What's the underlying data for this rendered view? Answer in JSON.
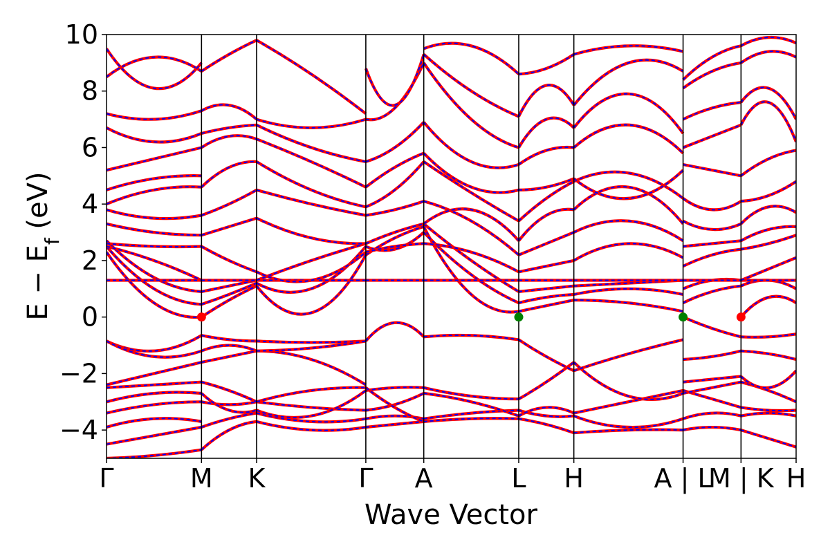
{
  "chart_data": {
    "type": "line",
    "xlabel": "Wave Vector",
    "ylabel_main": "E − E",
    "ylabel_sub": "f",
    "ylabel_unit": " (eV)",
    "ylim": [
      -5,
      10
    ],
    "y_ticks": [
      -4,
      -2,
      0,
      2,
      4,
      6,
      8,
      10
    ],
    "y_tick_labels": [
      "−4",
      "−2",
      "0",
      "2",
      "4",
      "6",
      "8",
      "10"
    ],
    "k_ticks": [
      0,
      1,
      1.58,
      2.73,
      3.34,
      4.34,
      4.92,
      6.07,
      6.68,
      7.26
    ],
    "k_tick_labels": [
      "Γ",
      "M",
      "K",
      "Γ",
      "A",
      "L",
      "H",
      "A | L",
      "M | K",
      "H"
    ],
    "line_style": {
      "solid_color": "#ff0000",
      "dashed_color": "#0000ff"
    },
    "band_edge_markers": [
      {
        "k": 1.0,
        "E": 0.0,
        "color": "#ff0000"
      },
      {
        "k": 4.34,
        "E": 0.0,
        "color": "#008000"
      },
      {
        "k": 6.07,
        "E": 0.0,
        "color": "#008000"
      },
      {
        "k": 6.68,
        "E": 0.0,
        "color": "#ff0000"
      }
    ],
    "segments": [
      {
        "k0": 0,
        "k1": 1,
        "bands": [
          [
            -5.0,
            -4.9,
            -4.7
          ],
          [
            -4.5,
            -4.2,
            -3.9
          ],
          [
            -3.9,
            -3.6,
            -3.7
          ],
          [
            -3.4,
            -3.1,
            -3.0
          ],
          [
            -3.0,
            -2.7,
            -2.7
          ],
          [
            -2.5,
            -2.4,
            -2.3
          ],
          [
            -2.4,
            -2.0,
            -1.6
          ],
          [
            -0.85,
            -1.2,
            -0.65
          ],
          [
            -0.85,
            -1.4,
            -1.2
          ],
          [
            2.3,
            0.5,
            0.0
          ],
          [
            2.5,
            1.0,
            0.45
          ],
          [
            2.7,
            1.4,
            0.9
          ],
          [
            1.3,
            1.3,
            1.3
          ],
          [
            2.5,
            2.0,
            1.3
          ],
          [
            2.6,
            2.5,
            2.5
          ],
          [
            3.3,
            3.0,
            2.9
          ],
          [
            3.8,
            3.5,
            3.6
          ],
          [
            4.0,
            4.5,
            4.6
          ],
          [
            4.5,
            4.9,
            5.0
          ],
          [
            5.2,
            5.6,
            6.0
          ],
          [
            6.7,
            6.2,
            6.5
          ],
          [
            7.2,
            7.0,
            7.3
          ],
          [
            8.5,
            9.2,
            8.7
          ],
          [
            9.5,
            8.1,
            9.0
          ]
        ]
      },
      {
        "k0": 1,
        "k1": 1.58,
        "bands": [
          [
            -4.7,
            -4.0,
            -3.7
          ],
          [
            -3.9,
            -3.6,
            -3.4
          ],
          [
            -3.0,
            -3.1,
            -3.0
          ],
          [
            -2.7,
            -3.3,
            -3.3
          ],
          [
            -2.3,
            -2.6,
            -3.0
          ],
          [
            -1.6,
            -1.4,
            -1.2
          ],
          [
            -0.65,
            -0.8,
            -0.85
          ],
          [
            -1.2,
            -1.0,
            -1.2
          ],
          [
            0.0,
            0.6,
            1.1
          ],
          [
            0.45,
            0.8,
            1.2
          ],
          [
            0.9,
            1.1,
            1.3
          ],
          [
            1.3,
            1.3,
            1.3
          ],
          [
            2.5,
            2.0,
            1.6
          ],
          [
            2.9,
            3.2,
            3.5
          ],
          [
            3.6,
            4.0,
            4.5
          ],
          [
            4.6,
            5.3,
            5.5
          ],
          [
            6.0,
            6.4,
            6.3
          ],
          [
            6.5,
            6.7,
            6.8
          ],
          [
            7.3,
            7.5,
            7.0
          ],
          [
            8.7,
            9.3,
            9.8
          ]
        ]
      },
      {
        "k0": 1.58,
        "k1": 2.73,
        "bands": [
          [
            -3.7,
            -4.0,
            -3.9
          ],
          [
            -3.4,
            -3.7,
            -3.6
          ],
          [
            -3.0,
            -3.2,
            -3.3
          ],
          [
            -3.3,
            -3.5,
            -2.6
          ],
          [
            -3.0,
            -2.6,
            -2.5
          ],
          [
            -1.2,
            -1.5,
            -2.4
          ],
          [
            -0.85,
            -0.9,
            -0.85
          ],
          [
            -1.2,
            -1.1,
            -0.85
          ],
          [
            1.1,
            0.15,
            2.2
          ],
          [
            1.2,
            1.0,
            2.5
          ],
          [
            1.3,
            1.3,
            1.3
          ],
          [
            1.3,
            2.0,
            2.6
          ],
          [
            1.6,
            1.3,
            2.3
          ],
          [
            3.5,
            2.8,
            2.6
          ],
          [
            4.5,
            4.0,
            3.6
          ],
          [
            5.5,
            4.5,
            3.9
          ],
          [
            6.3,
            5.5,
            4.6
          ],
          [
            6.8,
            6.0,
            5.5
          ],
          [
            7.0,
            6.7,
            7.0
          ],
          [
            9.8,
            8.6,
            7.2
          ]
        ]
      },
      {
        "k0": 2.73,
        "k1": 3.34,
        "bands": [
          [
            -3.9,
            -3.8,
            -3.7
          ],
          [
            -3.6,
            -3.5,
            -3.6
          ],
          [
            -3.3,
            -3.1,
            -2.7
          ],
          [
            -2.6,
            -2.5,
            -2.5
          ],
          [
            -2.5,
            -3.2,
            -3.7
          ],
          [
            -0.85,
            -0.2,
            -0.7
          ],
          [
            2.2,
            2.8,
            3.2
          ],
          [
            2.5,
            2.4,
            3.0
          ],
          [
            1.3,
            1.3,
            1.3
          ],
          [
            2.6,
            3.0,
            3.3
          ],
          [
            2.3,
            2.5,
            2.6
          ],
          [
            3.6,
            3.8,
            4.1
          ],
          [
            3.9,
            4.5,
            5.5
          ],
          [
            4.6,
            5.3,
            5.8
          ],
          [
            5.5,
            6.0,
            6.9
          ],
          [
            7.0,
            7.4,
            9.0
          ],
          [
            8.8,
            7.5,
            9.3
          ]
        ]
      },
      {
        "k0": 3.34,
        "k1": 4.34,
        "bands": [
          [
            -3.7,
            -3.6,
            -3.6
          ],
          [
            -3.6,
            -3.4,
            -3.3
          ],
          [
            -2.7,
            -3.0,
            -3.5
          ],
          [
            -2.5,
            -2.8,
            -2.9
          ],
          [
            -0.7,
            -0.65,
            -0.8
          ],
          [
            3.2,
            0.8,
            0.2
          ],
          [
            3.0,
            1.5,
            0.5
          ],
          [
            3.3,
            2.0,
            0.9
          ],
          [
            1.3,
            1.3,
            1.3
          ],
          [
            2.6,
            2.3,
            1.6
          ],
          [
            4.1,
            3.4,
            2.2
          ],
          [
            3.3,
            3.8,
            2.7
          ],
          [
            5.5,
            4.4,
            3.4
          ],
          [
            5.8,
            4.6,
            4.5
          ],
          [
            6.9,
            5.5,
            5.4
          ],
          [
            9.0,
            7.0,
            6.0
          ],
          [
            9.3,
            8.0,
            7.1
          ],
          [
            9.5,
            9.6,
            8.6
          ]
        ]
      },
      {
        "k0": 4.34,
        "k1": 4.92,
        "bands": [
          [
            -3.6,
            -3.8,
            -4.1
          ],
          [
            -3.3,
            -3.5,
            -3.5
          ],
          [
            -3.5,
            -3.2,
            -3.4
          ],
          [
            -2.9,
            -2.3,
            -1.6
          ],
          [
            -0.8,
            -1.4,
            -1.9
          ],
          [
            0.2,
            0.4,
            0.6
          ],
          [
            0.5,
            0.7,
            0.8
          ],
          [
            0.9,
            1.0,
            1.1
          ],
          [
            1.3,
            1.3,
            1.3
          ],
          [
            1.6,
            1.8,
            2.0
          ],
          [
            2.2,
            2.6,
            3.0
          ],
          [
            2.7,
            3.6,
            3.8
          ],
          [
            3.4,
            4.2,
            4.8
          ],
          [
            4.5,
            4.6,
            4.9
          ],
          [
            5.4,
            5.9,
            6.0
          ],
          [
            6.0,
            7.0,
            6.7
          ],
          [
            7.1,
            8.2,
            7.5
          ],
          [
            8.6,
            8.8,
            9.3
          ]
        ]
      },
      {
        "k0": 4.92,
        "k1": 6.07,
        "bands": [
          [
            -4.1,
            -4.0,
            -4.0
          ],
          [
            -3.5,
            -3.9,
            -3.6
          ],
          [
            -3.4,
            -3.0,
            -2.6
          ],
          [
            -1.6,
            -2.8,
            -2.7
          ],
          [
            -1.9,
            -1.3,
            -0.8
          ],
          [
            0.6,
            0.5,
            0.2
          ],
          [
            0.8,
            1.0,
            0.8
          ],
          [
            1.1,
            1.2,
            1.3
          ],
          [
            1.3,
            1.3,
            1.3
          ],
          [
            2.0,
            2.6,
            2.1
          ],
          [
            3.0,
            3.4,
            2.7
          ],
          [
            3.8,
            4.6,
            3.3
          ],
          [
            4.8,
            5.1,
            4.2
          ],
          [
            4.9,
            4.2,
            5.2
          ],
          [
            6.0,
            6.8,
            5.8
          ],
          [
            6.7,
            7.9,
            6.5
          ],
          [
            7.5,
            9.0,
            8.7
          ],
          [
            9.3,
            9.6,
            9.4
          ]
        ]
      },
      {
        "k0": 6.07,
        "k1": 6.68,
        "bands": [
          [
            -4.0,
            -3.9,
            -4.0
          ],
          [
            -3.6,
            -3.4,
            -3.5
          ],
          [
            -2.6,
            -2.9,
            -3.2
          ],
          [
            -2.7,
            -2.5,
            -2.3
          ],
          [
            -1.5,
            -1.4,
            -1.2
          ],
          [
            -2.3,
            -2.2,
            -2.1
          ],
          [
            0.0,
            -0.4,
            -0.7
          ],
          [
            0.5,
            0.9,
            1.1
          ],
          [
            1.0,
            1.3,
            1.3
          ],
          [
            1.3,
            1.3,
            1.3
          ],
          [
            1.8,
            2.2,
            2.4
          ],
          [
            2.5,
            2.6,
            2.7
          ],
          [
            3.4,
            3.1,
            3.3
          ],
          [
            4.2,
            3.8,
            4.1
          ],
          [
            5.4,
            5.2,
            5.0
          ],
          [
            6.0,
            6.4,
            6.8
          ],
          [
            7.0,
            7.4,
            7.6
          ],
          [
            8.1,
            8.7,
            9.0
          ],
          [
            8.4,
            9.2,
            9.6
          ]
        ]
      },
      {
        "k0": 6.68,
        "k1": 7.26,
        "bands": [
          [
            -4.0,
            -4.3,
            -4.6
          ],
          [
            -3.5,
            -3.4,
            -3.5
          ],
          [
            -3.2,
            -3.3,
            -3.3
          ],
          [
            -2.3,
            -2.6,
            -3.0
          ],
          [
            -1.2,
            -1.3,
            -1.5
          ],
          [
            -2.1,
            -2.5,
            -1.9
          ],
          [
            -0.7,
            -0.7,
            -0.6
          ],
          [
            0.0,
            0.7,
            0.5
          ],
          [
            1.1,
            1.3,
            1.0
          ],
          [
            1.3,
            1.3,
            1.3
          ],
          [
            1.3,
            1.7,
            2.1
          ],
          [
            2.4,
            2.6,
            2.9
          ],
          [
            2.7,
            3.1,
            3.2
          ],
          [
            3.3,
            3.9,
            3.7
          ],
          [
            4.1,
            4.3,
            4.8
          ],
          [
            5.0,
            5.6,
            5.9
          ],
          [
            6.8,
            7.6,
            6.2
          ],
          [
            7.6,
            8.1,
            7.0
          ],
          [
            9.0,
            9.4,
            9.2
          ],
          [
            9.6,
            9.9,
            9.7
          ]
        ]
      }
    ]
  }
}
